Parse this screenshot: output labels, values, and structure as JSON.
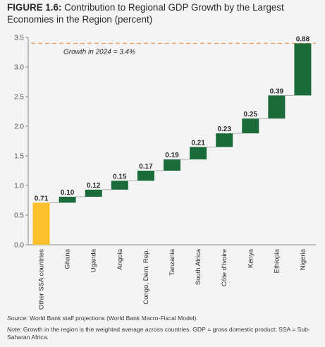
{
  "figure": {
    "label": "FIGURE 1.6:",
    "title": "Contribution to Regional GDP Growth by the Largest Economies in the Region (percent)"
  },
  "chart_data": {
    "type": "bar",
    "subtype": "waterfall",
    "categories": [
      "Other SSA countries",
      "Ghana",
      "Uganda",
      "Angola",
      "Congo, Dem. Rep.",
      "Tanzania",
      "South Africa",
      "Côte d'Ivoire",
      "Kenya",
      "Ethiopia",
      "Nigeria"
    ],
    "values": [
      0.71,
      0.1,
      0.12,
      0.15,
      0.17,
      0.19,
      0.21,
      0.23,
      0.25,
      0.39,
      0.88
    ],
    "data_labels": [
      "0.71",
      "0.10",
      "0.12",
      "0.15",
      "0.17",
      "0.19",
      "0.21",
      "0.23",
      "0.25",
      "0.39",
      "0.88"
    ],
    "ylim": [
      0,
      3.5
    ],
    "yticks": [
      "0.0",
      "0.5",
      "1.0",
      "1.5",
      "2.0",
      "2.5",
      "3.0",
      "3.5"
    ],
    "reference_line": {
      "value": 3.4,
      "label": "Growth in 2024 = 3.4%",
      "color": "#f0a15c"
    },
    "colors": {
      "first_bar": "#fbc02d",
      "bars": "#1b6b3a",
      "connector": "#9a9a9a"
    },
    "grid": false,
    "legend": "none"
  },
  "notes": {
    "source_label": "Source",
    "source_text": ": World Bank staff projections (World Bank Macro-Fiscal Model).",
    "note_label": "Note",
    "note_text": ": Growth in the region is the weighted average across countries. GDP = gross domestic product; SSA = Sub-Saharan Africa."
  }
}
